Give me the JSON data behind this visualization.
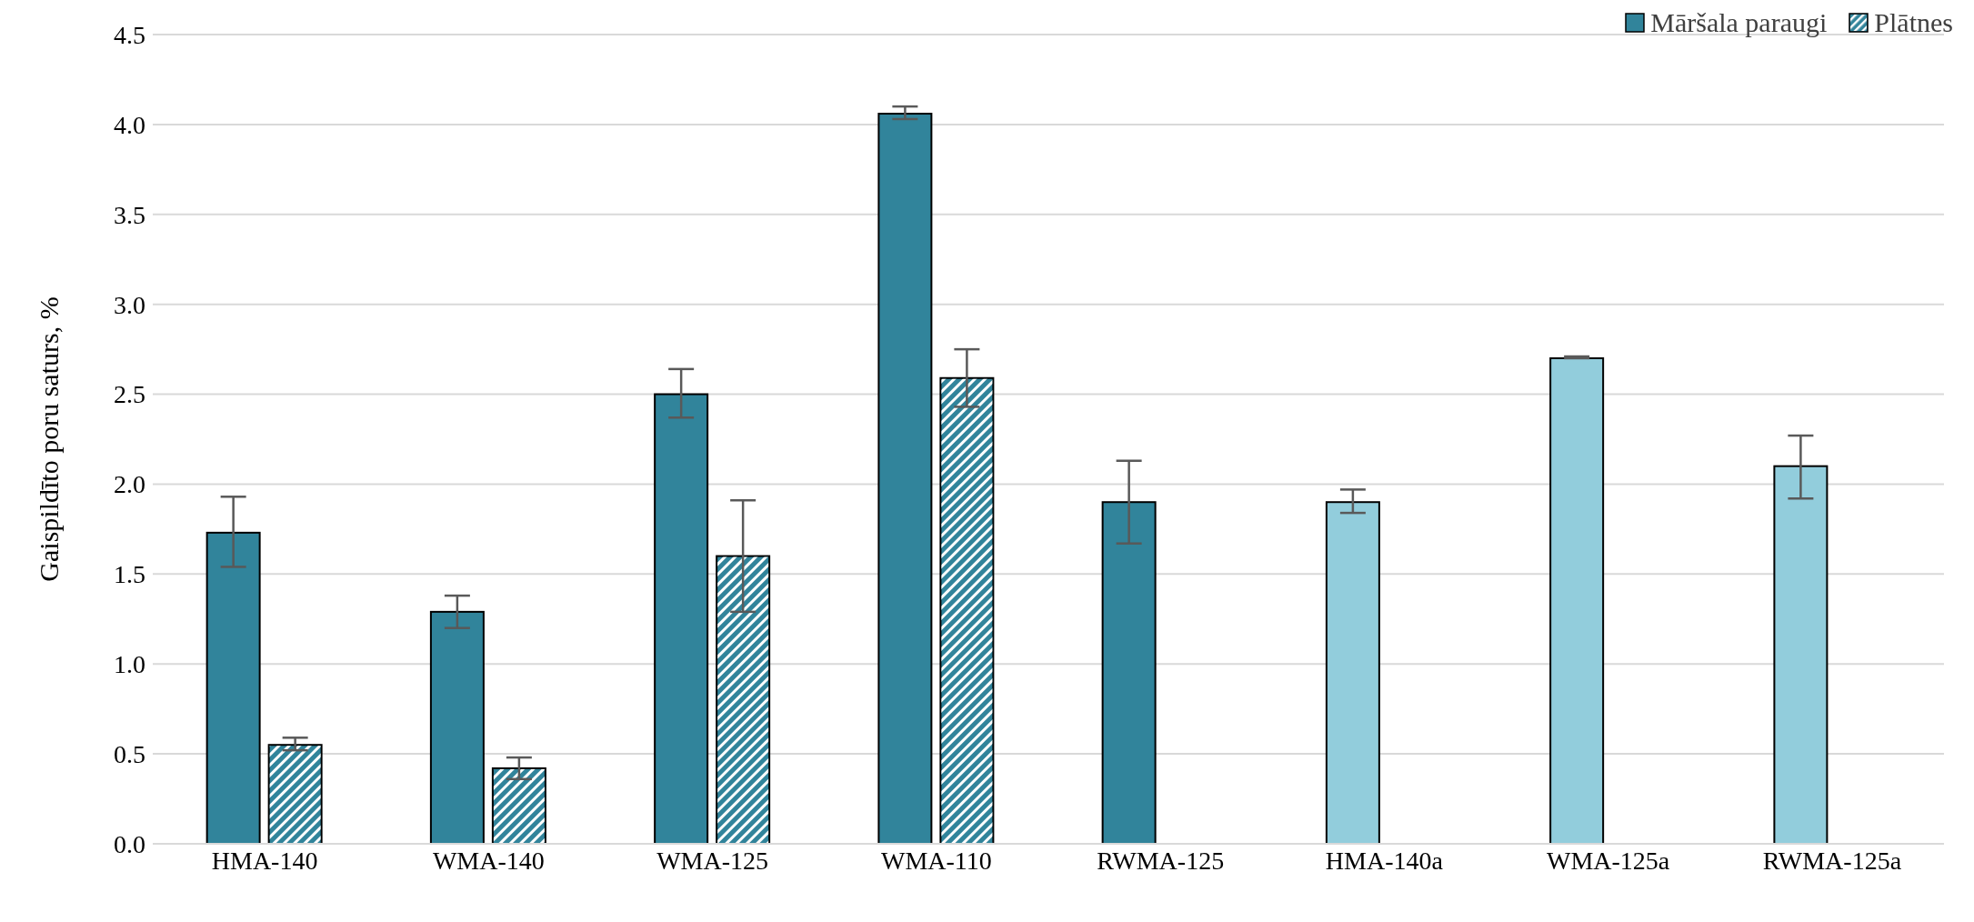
{
  "chart_data": {
    "type": "bar",
    "ylabel": "Gaispildīto poru saturs, %",
    "categories": [
      "HMA-140",
      "WMA-140",
      "WMA-125",
      "WMA-110",
      "RWMA-125",
      "HMA-140a",
      "WMA-125a",
      "RWMA-125a"
    ],
    "series": [
      {
        "name": "Māršala paraugi",
        "color": "#31849b",
        "colors": [
          "#31849b",
          "#31849b",
          "#31849b",
          "#31849b",
          "#31849b",
          "#92cddc",
          "#92cddc",
          "#92cddc"
        ],
        "values": [
          1.73,
          1.29,
          2.5,
          4.06,
          1.9,
          1.9,
          2.7,
          2.1
        ],
        "errors": [
          [
            1.54,
            1.93
          ],
          [
            1.2,
            1.38
          ],
          [
            2.37,
            2.64
          ],
          [
            4.03,
            4.1
          ],
          [
            1.67,
            2.13
          ],
          [
            1.84,
            1.97
          ],
          [
            2.7,
            2.71
          ],
          [
            1.92,
            2.27
          ]
        ]
      },
      {
        "name": "Plātnes",
        "color": "#31849b",
        "values": [
          0.55,
          0.42,
          1.6,
          2.59,
          null,
          null,
          null,
          null
        ],
        "errors": [
          [
            0.52,
            0.59
          ],
          [
            0.36,
            0.48
          ],
          [
            1.29,
            1.91
          ],
          [
            2.43,
            2.75
          ],
          null,
          null,
          null,
          null
        ]
      }
    ],
    "ylim": [
      0,
      4.5
    ],
    "yticks": [
      {
        "value": 0,
        "label": "0.0"
      },
      {
        "value": 0.5,
        "label": "0.5"
      },
      {
        "value": 1,
        "label": "1.0"
      },
      {
        "value": 1.5,
        "label": "1.5"
      },
      {
        "value": 2,
        "label": "2.0"
      },
      {
        "value": 2.5,
        "label": "2.5"
      },
      {
        "value": 3,
        "label": "3.0"
      },
      {
        "value": 3.5,
        "label": "3.5"
      },
      {
        "value": 4,
        "label": "4.0"
      },
      {
        "value": 4.5,
        "label": "4.5"
      }
    ],
    "grid": "y",
    "legend": "top right"
  }
}
